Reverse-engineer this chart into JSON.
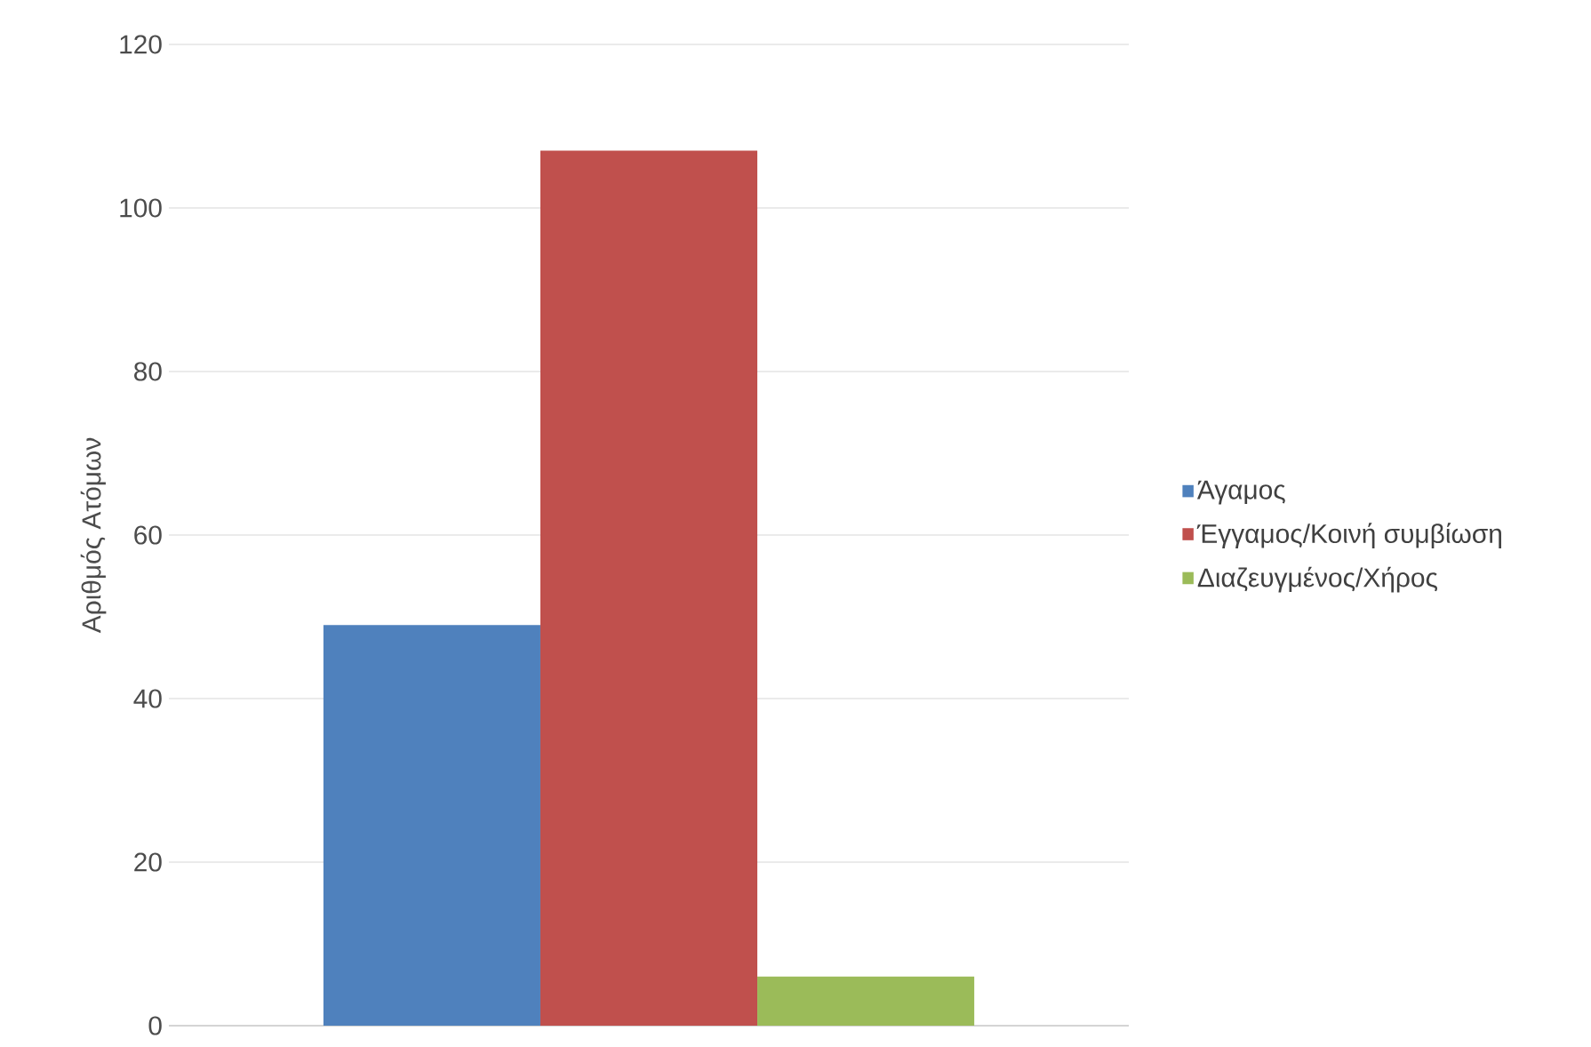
{
  "chart_data": {
    "type": "bar",
    "ylabel": "Αριθμός Ατόμων",
    "categories": [
      null
    ],
    "series": [
      {
        "name": "Άγαμος",
        "color": "#4f81bd",
        "values": [
          49
        ]
      },
      {
        "name": "Έγγαμος/Κοινή συμβίωση",
        "color": "#c0504d",
        "values": [
          107
        ]
      },
      {
        "name": "Διαζευγμένος/Χήρος",
        "color": "#9bbb59",
        "values": [
          6
        ]
      }
    ],
    "ylim": [
      0,
      120
    ],
    "yticks": [
      0,
      20,
      40,
      60,
      80,
      100,
      120
    ],
    "grid": "y",
    "legend": "right"
  }
}
